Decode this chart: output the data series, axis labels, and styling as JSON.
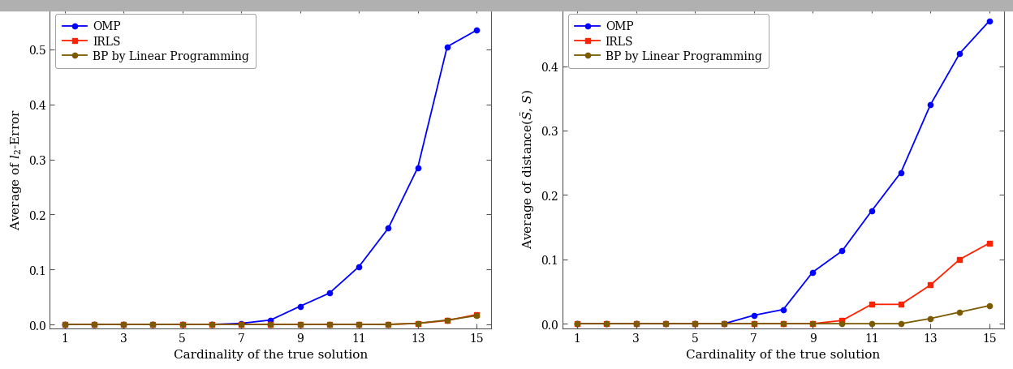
{
  "x": [
    1,
    2,
    3,
    4,
    5,
    6,
    7,
    8,
    9,
    10,
    11,
    12,
    13,
    14,
    15
  ],
  "plot1_omp": [
    0.0,
    0.0,
    0.0,
    0.0,
    0.0,
    0.0,
    0.002,
    0.008,
    0.033,
    0.057,
    0.105,
    0.175,
    0.285,
    0.505,
    0.535
  ],
  "plot1_irls": [
    0.0,
    0.0,
    0.0,
    0.0,
    0.0,
    0.0,
    0.0,
    0.0,
    0.0,
    0.0,
    0.0,
    0.0,
    0.002,
    0.007,
    0.018
  ],
  "plot1_bp": [
    0.0,
    0.0,
    0.0,
    0.0,
    0.0,
    0.0,
    0.0,
    0.0,
    0.0,
    0.0,
    0.0,
    0.0,
    0.002,
    0.008,
    0.016
  ],
  "plot2_omp": [
    0.0,
    0.0,
    0.0,
    0.0,
    0.0,
    0.0,
    0.013,
    0.022,
    0.08,
    0.113,
    0.175,
    0.235,
    0.34,
    0.42,
    0.47
  ],
  "plot2_irls": [
    0.0,
    0.0,
    0.0,
    0.0,
    0.0,
    0.0,
    0.0,
    0.0,
    0.0,
    0.005,
    0.03,
    0.03,
    0.06,
    0.1,
    0.125
  ],
  "plot2_bp": [
    0.0,
    0.0,
    0.0,
    0.0,
    0.0,
    0.0,
    0.0,
    0.0,
    0.0,
    0.0,
    0.0,
    0.0,
    0.008,
    0.018,
    0.028
  ],
  "omp_color": "#0000ff",
  "irls_color": "#ff2200",
  "bp_color": "#7b5a00",
  "xlabel": "Cardinality of the true solution",
  "ylabel1": "Average of $\\mathit{l}_2$-Error",
  "ylabel2": "Average of distance($\\bar{S}$, $S$)",
  "xticks": [
    1,
    3,
    5,
    7,
    9,
    11,
    13,
    15
  ],
  "yticks1": [
    0.0,
    0.1,
    0.2,
    0.3,
    0.4,
    0.5
  ],
  "yticks2": [
    0.0,
    0.1,
    0.2,
    0.3,
    0.4
  ],
  "legend_labels": [
    "OMP",
    "IRLS",
    "BP by Linear Programming"
  ],
  "background_color": "#ffffff",
  "top_bar_color": "#b0b0b0"
}
